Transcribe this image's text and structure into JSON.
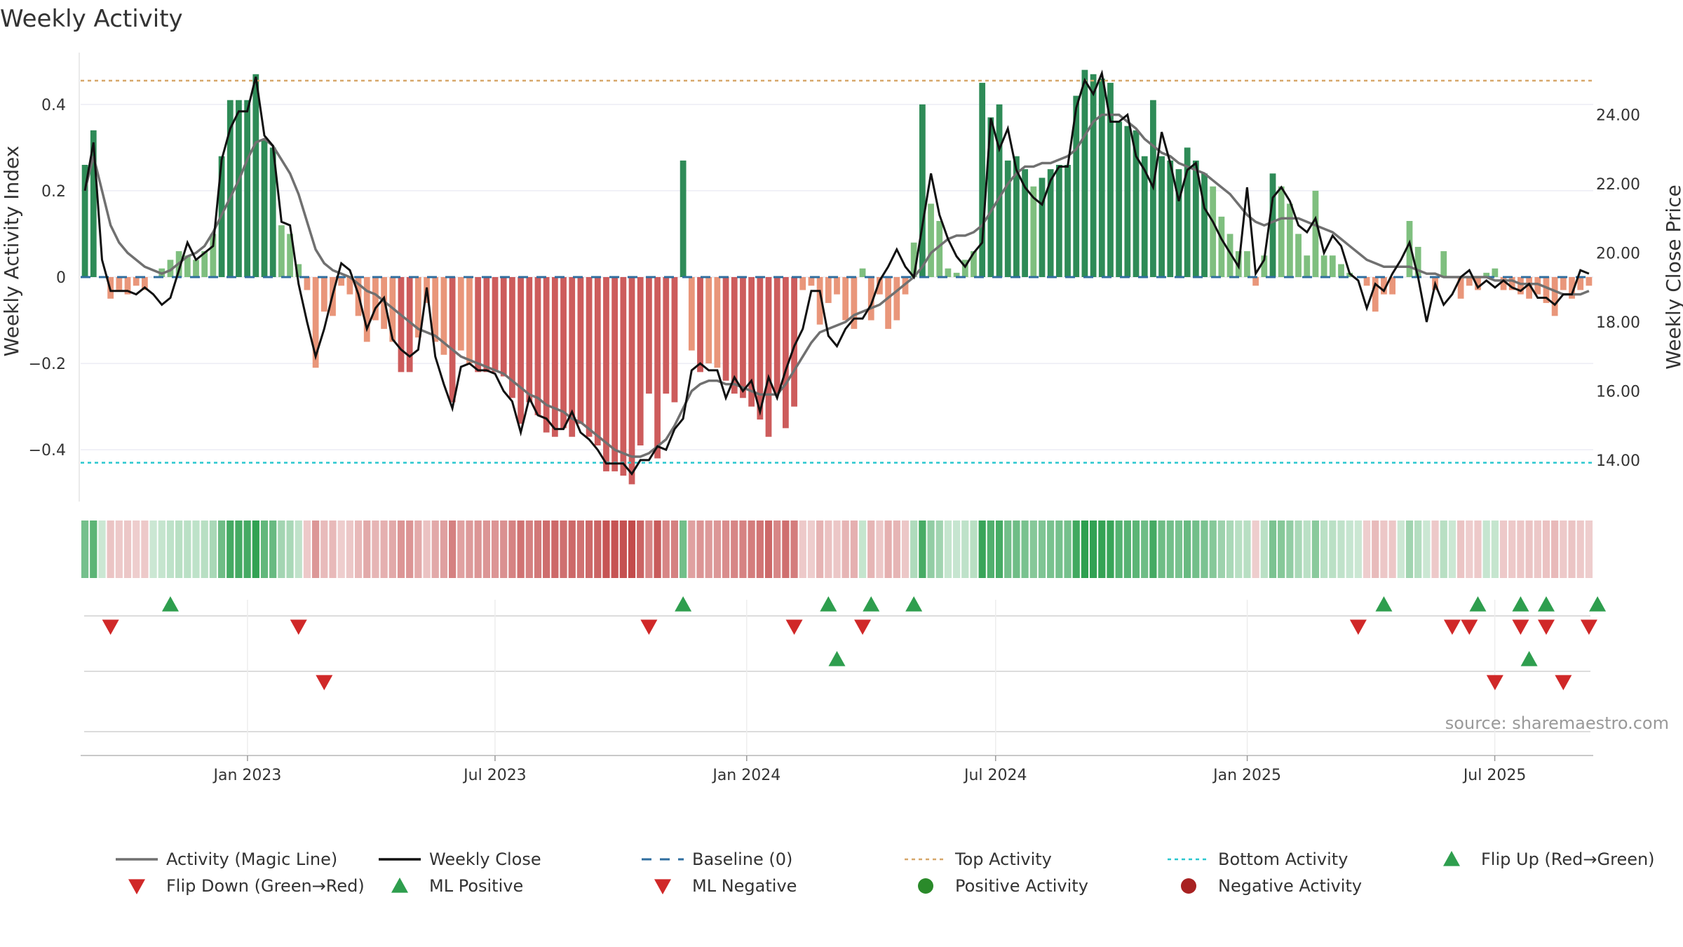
{
  "chart_data": {
    "type": "bar",
    "title": "Weekly Activity",
    "ylabel_left": "Weekly Activity Index",
    "ylabel_right": "Weekly Close Price",
    "ylim_left": [
      -0.52,
      0.52
    ],
    "ylim_right": [
      12.8,
      25.8
    ],
    "yticks_left": [
      {
        "v": 0.4,
        "label": "0.4"
      },
      {
        "v": 0.2,
        "label": "0.2"
      },
      {
        "v": 0,
        "label": "0"
      },
      {
        "v": -0.2,
        "label": "−0.2"
      },
      {
        "v": -0.4,
        "label": "−0.4"
      }
    ],
    "yticks_right": [
      {
        "v": 24,
        "label": "24.00"
      },
      {
        "v": 22,
        "label": "22.00"
      },
      {
        "v": 20,
        "label": "20.00"
      },
      {
        "v": 18,
        "label": "18.00"
      },
      {
        "v": 16,
        "label": "16.00"
      },
      {
        "v": 14,
        "label": "14.00"
      }
    ],
    "x_start": "2022-09-01",
    "x_end": "2025-09-11",
    "xticks": [
      {
        "date": "2023-01-01",
        "label": "Jan 2023"
      },
      {
        "date": "2023-07-01",
        "label": "Jul 2023"
      },
      {
        "date": "2024-01-01",
        "label": "Jan 2024"
      },
      {
        "date": "2024-07-01",
        "label": "Jul 2024"
      },
      {
        "date": "2025-01-01",
        "label": "Jan 2025"
      },
      {
        "date": "2025-07-01",
        "label": "Jul 2025"
      }
    ],
    "activity_index": [
      0.26,
      0.34,
      0.0,
      -0.05,
      -0.03,
      -0.04,
      -0.02,
      -0.03,
      0.0,
      0.02,
      0.04,
      0.06,
      0.05,
      0.04,
      0.06,
      0.1,
      0.28,
      0.41,
      0.41,
      0.41,
      0.47,
      0.32,
      0.3,
      0.12,
      0.1,
      0.03,
      -0.03,
      -0.21,
      -0.08,
      -0.09,
      -0.02,
      -0.04,
      -0.09,
      -0.15,
      -0.1,
      -0.12,
      -0.15,
      -0.22,
      -0.22,
      -0.14,
      -0.06,
      -0.15,
      -0.18,
      -0.29,
      -0.17,
      -0.2,
      -0.22,
      -0.22,
      -0.22,
      -0.23,
      -0.28,
      -0.34,
      -0.29,
      -0.32,
      -0.36,
      -0.37,
      -0.35,
      -0.37,
      -0.34,
      -0.37,
      -0.39,
      -0.45,
      -0.45,
      -0.46,
      -0.48,
      -0.39,
      -0.27,
      -0.42,
      -0.27,
      -0.29,
      0.27,
      -0.17,
      -0.22,
      -0.2,
      -0.21,
      -0.24,
      -0.27,
      -0.28,
      -0.3,
      -0.33,
      -0.37,
      -0.27,
      -0.35,
      -0.3,
      -0.03,
      -0.02,
      -0.11,
      -0.06,
      -0.04,
      -0.1,
      -0.12,
      0.02,
      -0.1,
      -0.04,
      -0.12,
      -0.1,
      -0.04,
      0.08,
      0.4,
      0.17,
      0.13,
      0.02,
      0.01,
      0.04,
      0.06,
      0.45,
      0.37,
      0.4,
      0.27,
      0.28,
      0.25,
      0.21,
      0.23,
      0.25,
      0.26,
      0.26,
      0.42,
      0.48,
      0.47,
      0.46,
      0.45,
      0.36,
      0.35,
      0.34,
      0.28,
      0.41,
      0.28,
      0.27,
      0.25,
      0.3,
      0.27,
      0.24,
      0.21,
      0.14,
      0.1,
      0.06,
      0.06,
      -0.02,
      0.05,
      0.24,
      0.21,
      0.17,
      0.1,
      0.05,
      0.2,
      0.05,
      0.05,
      0.03,
      0.01,
      0.0,
      -0.02,
      -0.08,
      -0.04,
      -0.04,
      0.0,
      0.13,
      0.07,
      0.0,
      -0.03,
      0.06,
      0.0,
      -0.05,
      -0.02,
      -0.03,
      0.01,
      0.02,
      -0.03,
      -0.03,
      -0.04,
      -0.05,
      -0.04,
      -0.06,
      -0.09,
      -0.03,
      -0.05,
      -0.03,
      -0.02
    ],
    "weekly_close": [
      21.8,
      23.2,
      19.8,
      18.9,
      18.9,
      18.9,
      18.8,
      19.0,
      18.8,
      18.5,
      18.7,
      19.5,
      20.3,
      19.8,
      20.0,
      20.2,
      22.7,
      23.6,
      24.1,
      24.1,
      25.1,
      23.4,
      23.1,
      20.9,
      20.8,
      19.1,
      18.0,
      17.0,
      17.8,
      18.8,
      19.7,
      19.5,
      18.8,
      17.8,
      18.4,
      18.7,
      17.5,
      17.2,
      17.0,
      17.2,
      19.0,
      17.0,
      16.2,
      15.5,
      16.7,
      16.8,
      16.6,
      16.6,
      16.5,
      16.0,
      15.7,
      14.8,
      15.8,
      15.3,
      15.2,
      14.9,
      14.9,
      15.4,
      14.8,
      14.6,
      14.3,
      13.9,
      13.9,
      13.9,
      13.6,
      14.0,
      14.0,
      14.4,
      14.3,
      14.9,
      15.2,
      16.6,
      16.8,
      16.6,
      16.6,
      15.8,
      16.4,
      16.0,
      16.3,
      15.4,
      16.4,
      15.8,
      16.6,
      17.3,
      17.8,
      18.9,
      18.9,
      17.6,
      17.3,
      17.8,
      18.1,
      18.1,
      18.5,
      19.2,
      19.6,
      20.1,
      19.6,
      19.3,
      20.8,
      22.3,
      21.1,
      20.4,
      19.9,
      19.6,
      20.0,
      20.3,
      23.9,
      23.0,
      23.6,
      22.4,
      21.9,
      21.6,
      21.4,
      22.1,
      22.5,
      22.5,
      24.2,
      25.0,
      24.6,
      25.2,
      23.8,
      23.8,
      24.0,
      22.8,
      22.4,
      21.9,
      23.5,
      22.6,
      21.5,
      22.4,
      22.6,
      21.3,
      20.9,
      20.4,
      20.0,
      19.6,
      21.9,
      19.4,
      19.8,
      21.6,
      21.9,
      21.5,
      20.8,
      20.6,
      21.0,
      20.0,
      20.5,
      20.2,
      19.4,
      19.2,
      18.4,
      19.1,
      18.9,
      19.4,
      19.8,
      20.3,
      19.3,
      18.0,
      19.1,
      18.5,
      18.8,
      19.3,
      19.5,
      19.0,
      19.2,
      19.0,
      19.2,
      19.0,
      18.9,
      19.1,
      18.7,
      18.7,
      18.5,
      18.8,
      18.8,
      19.5,
      19.4
    ],
    "magic_line": [
      21.8,
      22.8,
      21.8,
      20.8,
      20.3,
      20.0,
      19.8,
      19.6,
      19.5,
      19.4,
      19.5,
      19.7,
      19.9,
      20.0,
      20.2,
      20.6,
      21.1,
      21.6,
      22.1,
      22.7,
      23.2,
      23.3,
      23.1,
      22.7,
      22.3,
      21.7,
      20.9,
      20.1,
      19.7,
      19.5,
      19.4,
      19.3,
      19.1,
      18.9,
      18.8,
      18.6,
      18.4,
      18.2,
      18.0,
      17.8,
      17.7,
      17.6,
      17.4,
      17.2,
      17.0,
      16.9,
      16.8,
      16.7,
      16.6,
      16.5,
      16.3,
      16.1,
      15.9,
      15.8,
      15.6,
      15.5,
      15.4,
      15.2,
      15.1,
      14.9,
      14.7,
      14.5,
      14.3,
      14.2,
      14.1,
      14.1,
      14.2,
      14.4,
      14.6,
      15.0,
      15.5,
      16.0,
      16.2,
      16.3,
      16.3,
      16.2,
      16.2,
      16.1,
      16.0,
      15.9,
      15.9,
      15.9,
      16.2,
      16.6,
      17.0,
      17.4,
      17.7,
      17.8,
      17.9,
      18.0,
      18.2,
      18.3,
      18.4,
      18.5,
      18.7,
      18.9,
      19.1,
      19.3,
      19.6,
      20.0,
      20.2,
      20.4,
      20.5,
      20.5,
      20.6,
      20.8,
      21.2,
      21.6,
      22.0,
      22.3,
      22.5,
      22.5,
      22.6,
      22.6,
      22.7,
      22.8,
      23.0,
      23.4,
      23.8,
      24.0,
      24.0,
      24.0,
      23.8,
      23.6,
      23.3,
      23.1,
      22.9,
      22.8,
      22.6,
      22.5,
      22.4,
      22.3,
      22.1,
      21.9,
      21.7,
      21.4,
      21.1,
      20.9,
      20.8,
      20.9,
      21.0,
      21.0,
      21.0,
      20.9,
      20.8,
      20.7,
      20.6,
      20.4,
      20.2,
      20.0,
      19.8,
      19.7,
      19.6,
      19.6,
      19.6,
      19.6,
      19.5,
      19.4,
      19.4,
      19.3,
      19.3,
      19.3,
      19.3,
      19.3,
      19.3,
      19.2,
      19.2,
      19.2,
      19.1,
      19.1,
      19.1,
      19.0,
      18.9,
      18.8,
      18.8,
      18.8,
      18.9
    ],
    "top_activity": 0.455,
    "bottom_activity": -0.43,
    "flip_up_weeks": [
      10,
      70,
      87,
      92,
      97,
      152,
      163,
      168,
      171,
      177
    ],
    "flip_down_weeks": [
      3,
      25,
      66,
      83,
      91,
      149,
      160,
      162,
      168,
      171,
      176
    ],
    "ml_positive_weeks": [
      88,
      169
    ],
    "ml_negative_weeks": [
      28,
      165,
      173
    ],
    "source_note": "source: sharemaestro.com",
    "legend": [
      {
        "label": "Activity (Magic Line)",
        "symbol": "line",
        "color": "#707070"
      },
      {
        "label": "Weekly Close",
        "symbol": "line",
        "color": "#111111"
      },
      {
        "label": "Baseline (0)",
        "symbol": "dash",
        "color": "#2f6e9f"
      },
      {
        "label": "Top Activity",
        "symbol": "dot",
        "color": "#d7a76a"
      },
      {
        "label": "Bottom Activity",
        "symbol": "dot",
        "color": "#2ac7cf"
      },
      {
        "label": "Flip Up (Red→Green)",
        "symbol": "tri-up",
        "color": "#2e9e4e"
      },
      {
        "label": "Flip Down (Green→Red)",
        "symbol": "tri-down",
        "color": "#d02828"
      },
      {
        "label": "ML Positive",
        "symbol": "tri-up",
        "color": "#2e9e4e"
      },
      {
        "label": "ML Negative",
        "symbol": "tri-down",
        "color": "#d02828"
      },
      {
        "label": "Positive Activity",
        "symbol": "circle",
        "color": "#2a8a2a"
      },
      {
        "label": "Negative Activity",
        "symbol": "circle",
        "color": "#a82222"
      }
    ]
  }
}
